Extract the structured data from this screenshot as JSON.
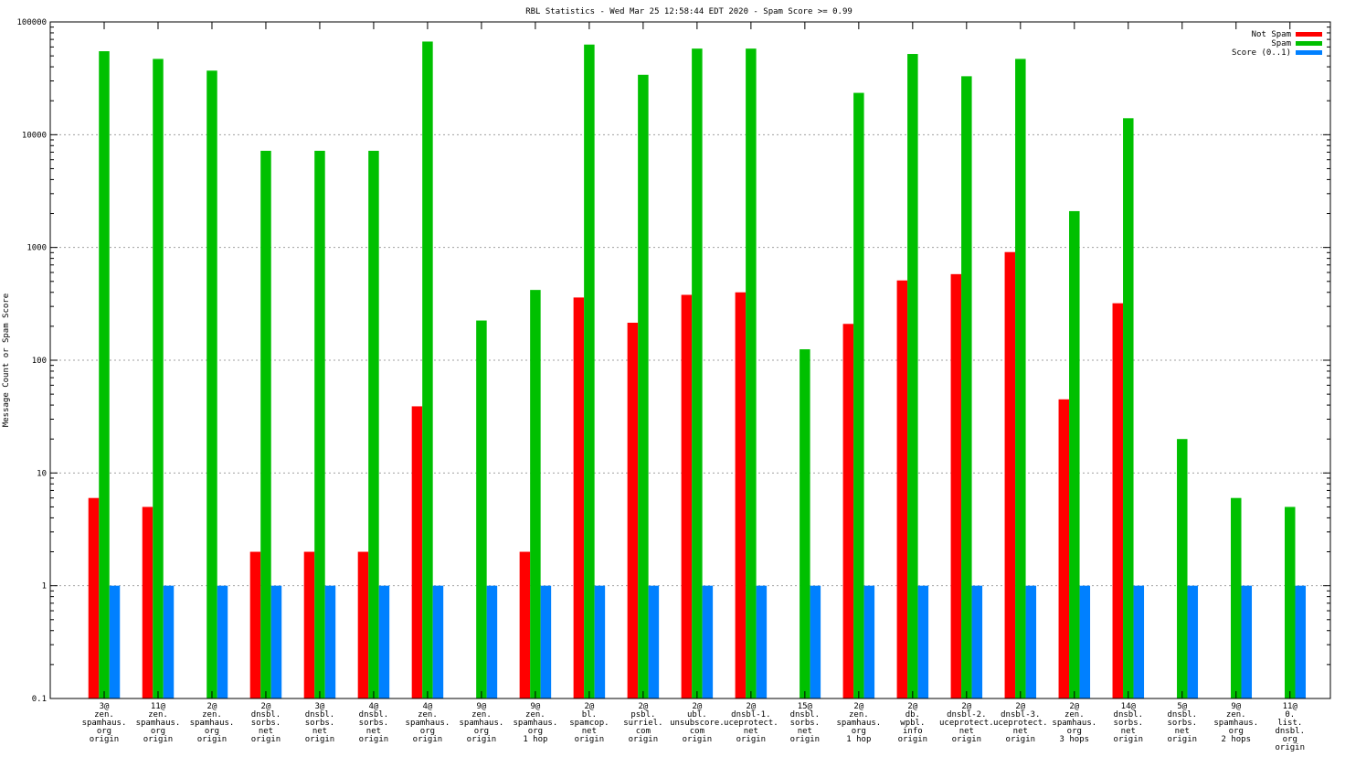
{
  "chart_data": {
    "type": "bar",
    "title": "RBL Statistics - Wed Mar 25 12:58:44 EDT 2020 - Spam Score >= 0.99",
    "xlabel": "",
    "ylabel": "Message Count or Spam Score",
    "y_scale": "log",
    "ylim": [
      0.1,
      100000
    ],
    "y_ticks": [
      "0.1",
      "1",
      "10",
      "100",
      "1000",
      "10000",
      "100000"
    ],
    "grid": true,
    "legend_position": "top-right",
    "categories": [
      [
        "3@",
        "zen.",
        "spamhaus.",
        "org",
        "origin"
      ],
      [
        "11@",
        "zen.",
        "spamhaus.",
        "org",
        "origin"
      ],
      [
        "2@",
        "zen.",
        "spamhaus.",
        "org",
        "origin"
      ],
      [
        "2@",
        "dnsbl.",
        "sorbs.",
        "net",
        "origin"
      ],
      [
        "3@",
        "dnsbl.",
        "sorbs.",
        "net",
        "origin"
      ],
      [
        "4@",
        "dnsbl.",
        "sorbs.",
        "net",
        "origin"
      ],
      [
        "4@",
        "zen.",
        "spamhaus.",
        "org",
        "origin"
      ],
      [
        "9@",
        "zen.",
        "spamhaus.",
        "org",
        "origin"
      ],
      [
        "9@",
        "zen.",
        "spamhaus.",
        "org",
        "1 hop"
      ],
      [
        "2@",
        "bl.",
        "spamcop.",
        "net",
        "origin"
      ],
      [
        "2@",
        "psbl.",
        "surriel.",
        "com",
        "origin"
      ],
      [
        "2@",
        "ubl.",
        "unsubscore.",
        "com",
        "origin"
      ],
      [
        "2@",
        "dnsbl-1.",
        "uceprotect.",
        "net",
        "origin"
      ],
      [
        "15@",
        "dnsbl.",
        "sorbs.",
        "net",
        "origin"
      ],
      [
        "2@",
        "zen.",
        "spamhaus.",
        "org",
        "1 hop"
      ],
      [
        "2@",
        "db.",
        "wpbl.",
        "info",
        "origin"
      ],
      [
        "2@",
        "dnsbl-2.",
        "uceprotect.",
        "net",
        "origin"
      ],
      [
        "2@",
        "dnsbl-3.",
        "uceprotect.",
        "net",
        "origin"
      ],
      [
        "2@",
        "zen.",
        "spamhaus.",
        "org",
        "3 hops"
      ],
      [
        "14@",
        "dnsbl.",
        "sorbs.",
        "net",
        "origin"
      ],
      [
        "5@",
        "dnsbl.",
        "sorbs.",
        "net",
        "origin"
      ],
      [
        "9@",
        "zen.",
        "spamhaus.",
        "org",
        "2 hops"
      ],
      [
        "11@",
        "0.",
        "list.",
        "dnsbl.",
        "org",
        "origin"
      ]
    ],
    "series": [
      {
        "name": "Not Spam",
        "color": "#ff0000",
        "values": [
          6,
          5,
          0,
          2,
          2,
          2,
          39,
          0,
          2,
          360,
          215,
          380,
          400,
          0,
          210,
          510,
          580,
          910,
          45,
          320,
          0,
          0,
          0
        ]
      },
      {
        "name": "Spam",
        "color": "#00c000",
        "values": [
          55000,
          47000,
          37000,
          7200,
          7200,
          7200,
          67000,
          225,
          420,
          63000,
          34000,
          58000,
          58000,
          125,
          23500,
          52000,
          33000,
          47000,
          2100,
          14000,
          20,
          6,
          5
        ]
      },
      {
        "name": "Score (0..1)",
        "color": "#0080ff",
        "values": [
          1,
          1,
          1,
          1,
          1,
          1,
          1,
          1,
          1,
          1,
          1,
          1,
          1,
          1,
          1,
          1,
          1,
          1,
          1,
          1,
          1,
          1,
          1
        ]
      }
    ]
  }
}
